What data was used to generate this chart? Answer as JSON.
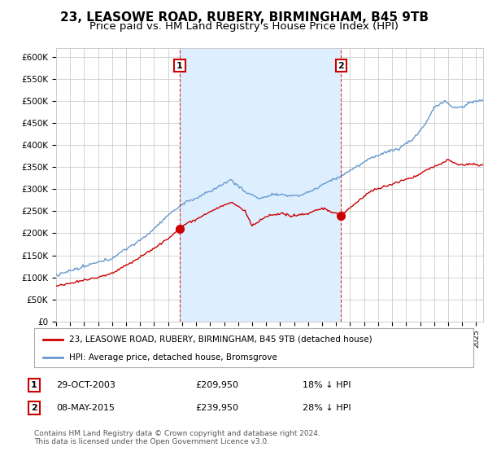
{
  "title": "23, LEASOWE ROAD, RUBERY, BIRMINGHAM, B45 9TB",
  "subtitle": "Price paid vs. HM Land Registry's House Price Index (HPI)",
  "red_label": "23, LEASOWE ROAD, RUBERY, BIRMINGHAM, B45 9TB (detached house)",
  "blue_label": "HPI: Average price, detached house, Bromsgrove",
  "annotation1_date": "29-OCT-2003",
  "annotation1_price": "£209,950",
  "annotation1_hpi": "18% ↓ HPI",
  "annotation1_year": 2003.83,
  "annotation1_value": 209950,
  "annotation2_date": "08-MAY-2015",
  "annotation2_price": "£239,950",
  "annotation2_hpi": "28% ↓ HPI",
  "annotation2_year": 2015.36,
  "annotation2_value": 239950,
  "ylim_min": 0,
  "ylim_max": 620000,
  "xlim_min": 1995.0,
  "xlim_max": 2025.5,
  "background_color": "#ffffff",
  "grid_color": "#cccccc",
  "red_color": "#cc0000",
  "blue_color": "#6699cc",
  "shade_color": "#ddeeff",
  "title_fontsize": 11,
  "subtitle_fontsize": 9.5,
  "footer_text": "Contains HM Land Registry data © Crown copyright and database right 2024.\nThis data is licensed under the Open Government Licence v3.0.",
  "yticks": [
    0,
    50000,
    100000,
    150000,
    200000,
    250000,
    300000,
    350000,
    400000,
    450000,
    500000,
    550000,
    600000
  ],
  "ytick_labels": [
    "£0",
    "£50K",
    "£100K",
    "£150K",
    "£200K",
    "£250K",
    "£300K",
    "£350K",
    "£400K",
    "£450K",
    "£500K",
    "£550K",
    "£600K"
  ]
}
